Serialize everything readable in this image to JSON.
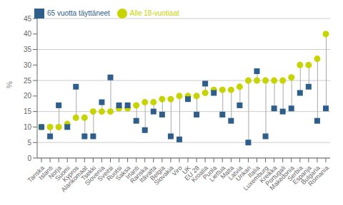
{
  "chart_data": {
    "type": "dumbbell",
    "categories": [
      "Tanska",
      "Islanti",
      "Norja",
      "Suomi",
      "Kypros",
      "Alankomaat",
      "Tsekki",
      "Slovenia",
      "Sveitsi",
      "Ruotsi",
      "Saksa",
      "Irlanti",
      "Ranska",
      "Itävalta",
      "Belgia",
      "Slovakia",
      "Viro",
      "UK",
      "EU 28",
      "Kroatia",
      "Puola",
      "Liettua",
      "Malta",
      "Latvia",
      "Unkari",
      "Italia",
      "Luxemburg",
      "Kreikka",
      "Portugali",
      "Makedonia",
      "Serbia",
      "Espanja",
      "Bulgaria",
      "Romania"
    ],
    "series": [
      {
        "name": "Alle 18-vuotiaat",
        "color": "#c8d400",
        "marker": "circle",
        "values": [
          10,
          10,
          10,
          11,
          13,
          13,
          15,
          15,
          15,
          16,
          16,
          17,
          18,
          18,
          19,
          19,
          20,
          20,
          20,
          21,
          22,
          22,
          22,
          23,
          25,
          25,
          25,
          25,
          25,
          26,
          30,
          30,
          32,
          40
        ]
      },
      {
        "name": "65 vuotta täyttäneet",
        "color": "#2e5f8a",
        "marker": "square",
        "values": [
          10,
          7,
          17,
          10,
          23,
          7,
          7,
          18,
          26,
          17,
          17,
          12,
          9,
          15,
          14,
          7,
          6,
          19,
          14,
          24,
          21,
          14,
          12,
          17,
          5,
          28,
          7,
          16,
          15,
          16,
          21,
          23,
          12,
          16
        ]
      }
    ],
    "ylabel": "%",
    "ylim": [
      0,
      45
    ],
    "yticks": [
      0,
      5,
      10,
      15,
      20,
      25,
      30,
      35,
      40,
      45
    ],
    "grid": true,
    "legend": "upper left"
  }
}
